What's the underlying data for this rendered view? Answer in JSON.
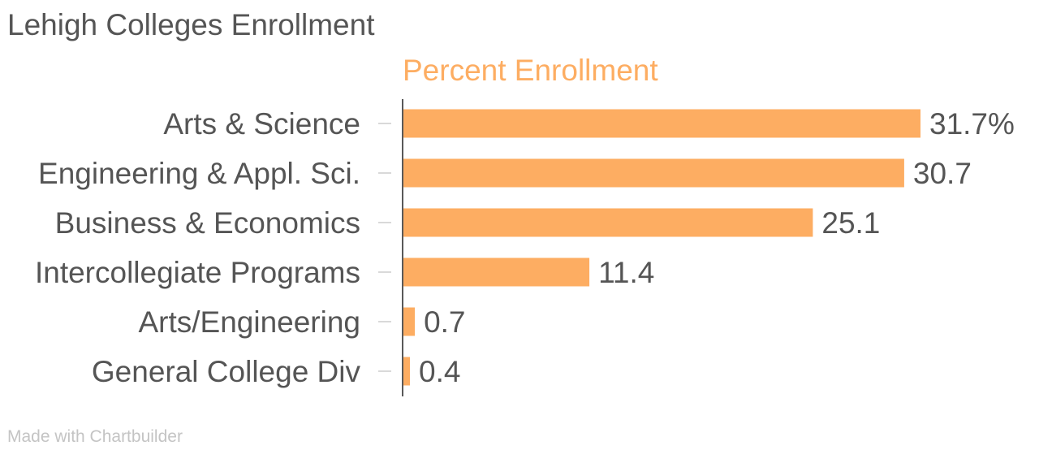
{
  "page": {
    "title": "Lehigh Colleges Enrollment",
    "credit": "Made with Chartbuilder"
  },
  "chart_data": {
    "type": "bar",
    "orientation": "horizontal",
    "title": "Lehigh Colleges Enrollment",
    "xlabel": "",
    "ylabel": "",
    "categories": [
      "Arts & Science",
      "Engineering & Appl. Sci.",
      "Business & Economics",
      "Intercollegiate Programs",
      "Arts/Engineering",
      "General College Div"
    ],
    "series": [
      {
        "name": "Percent Enrollment",
        "values": [
          31.7,
          30.7,
          25.1,
          11.4,
          0.7,
          0.4
        ],
        "color": "#fdad62"
      }
    ],
    "data_labels": [
      "31.7%",
      "30.7",
      "25.1",
      "11.4",
      "0.7",
      "0.4"
    ],
    "xlim": [
      0,
      31.7
    ],
    "grid": false,
    "legend": "top"
  },
  "colors": {
    "bar": "#fdad62",
    "text": "#555555",
    "axis": "#222222",
    "tick": "#cccccc",
    "credit": "#c4c4c4"
  }
}
